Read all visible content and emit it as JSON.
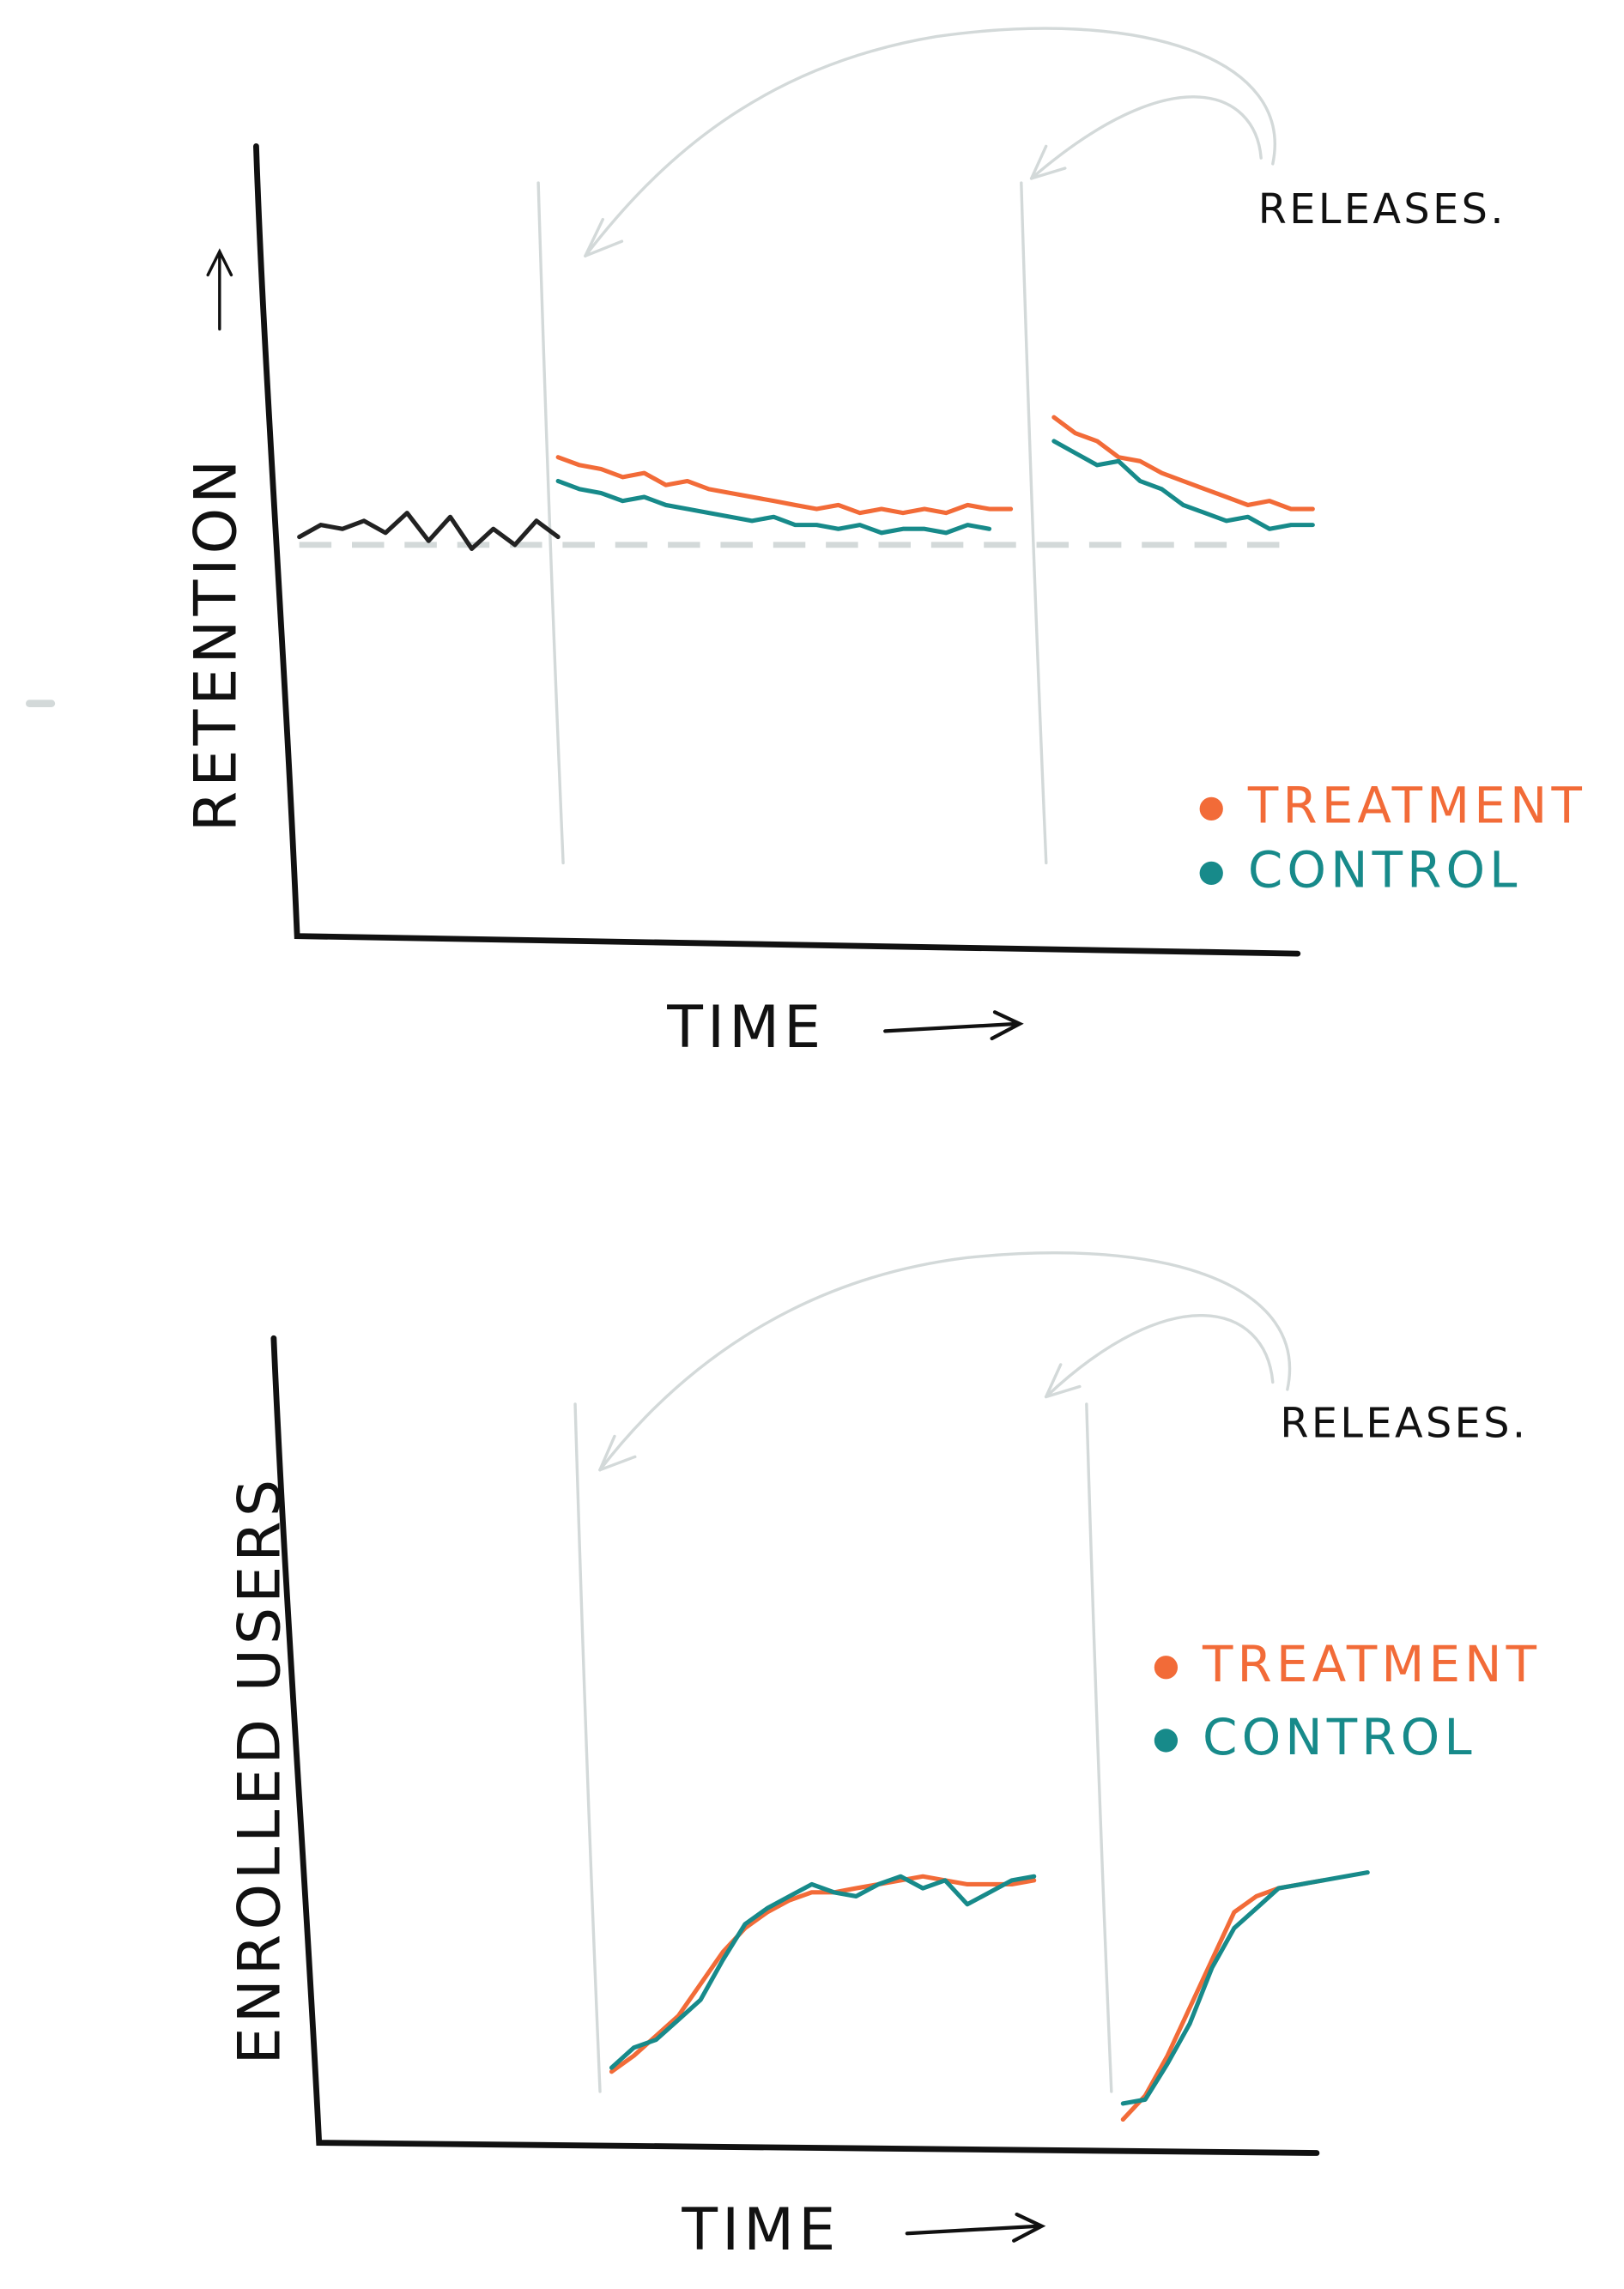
{
  "chart_data": [
    {
      "type": "line",
      "y_label": "RETENTION",
      "x_label": "TIME",
      "releases_label": "RELEASES.",
      "x": [
        0,
        2,
        4,
        6,
        8,
        10,
        12,
        14,
        16,
        18,
        20,
        22,
        24,
        26,
        28,
        30,
        32,
        34,
        36,
        38,
        40,
        42,
        44,
        46,
        48,
        50,
        52,
        54,
        56,
        58,
        60,
        62,
        64,
        66,
        68,
        70,
        72,
        74,
        76,
        78,
        80,
        82,
        84,
        86,
        88,
        90,
        92,
        94,
        96,
        98
      ],
      "xlim": [
        0,
        100
      ],
      "ylim": [
        0,
        100
      ],
      "releases": [
        27.8,
        72.6
      ],
      "baseline": 50,
      "series": [
        {
          "color": "#222222",
          "values": [
            null,
            null,
            51,
            52.5,
            52,
            53,
            51.5,
            54,
            50.5,
            53.5,
            49.5,
            52,
            50,
            53,
            51,
            null,
            null,
            null,
            null,
            null,
            null,
            null,
            null,
            null,
            null,
            null,
            null,
            null,
            null,
            null,
            null,
            null,
            null,
            null,
            null,
            null,
            null,
            null,
            null,
            null,
            null,
            null,
            null,
            null,
            null,
            null,
            null,
            null,
            null,
            null
          ]
        },
        {
          "name": "TREATMENT",
          "color": "#f26b38",
          "values": [
            null,
            null,
            null,
            null,
            null,
            null,
            null,
            null,
            null,
            null,
            null,
            null,
            null,
            null,
            61,
            60,
            59.5,
            58.5,
            59,
            57.5,
            58,
            57,
            56.5,
            56,
            55.5,
            55,
            54.5,
            55,
            54,
            54.5,
            54,
            54.5,
            54,
            55,
            54.5,
            54.5,
            null,
            66,
            64,
            63,
            61,
            60.5,
            59,
            58,
            57,
            56,
            55,
            55.5,
            54.5,
            54.5
          ]
        },
        {
          "name": "CONTROL",
          "color": "#178a8a",
          "values": [
            null,
            null,
            null,
            null,
            null,
            null,
            null,
            null,
            null,
            null,
            null,
            null,
            null,
            null,
            58,
            57,
            56.5,
            55.5,
            56,
            55,
            54.5,
            54,
            53.5,
            53,
            53.5,
            52.5,
            52.5,
            52,
            52.5,
            51.5,
            52,
            52,
            51.5,
            52.5,
            52,
            null,
            null,
            63,
            61.5,
            60,
            60.5,
            58,
            57,
            55,
            54,
            53,
            53.5,
            52,
            52.5,
            52.5
          ]
        }
      ]
    },
    {
      "type": "line",
      "y_label": "ENROLLED USERS",
      "x_label": "TIME",
      "releases_label": "RELEASES.",
      "x": [
        0,
        2,
        4,
        6,
        8,
        10,
        12,
        14,
        16,
        18,
        20,
        22,
        24,
        26,
        28,
        30,
        32,
        34,
        36,
        38,
        40,
        42,
        44,
        46,
        48,
        50,
        52,
        54,
        56,
        58,
        60,
        62,
        64,
        66,
        68,
        70,
        72,
        74,
        76,
        78,
        80,
        82,
        84,
        86,
        88,
        90,
        92,
        94,
        96,
        98
      ],
      "xlim": [
        0,
        100
      ],
      "ylim": [
        0,
        100
      ],
      "releases": [
        28.3,
        74.3
      ],
      "series": [
        {
          "name": "TREATMENT",
          "color": "#f26b38",
          "values": [
            null,
            null,
            null,
            null,
            null,
            null,
            null,
            null,
            null,
            null,
            null,
            null,
            null,
            null,
            null,
            8,
            10,
            12.5,
            15,
            19,
            23,
            26,
            28,
            29.5,
            30.5,
            30.5,
            31,
            31.5,
            32,
            32.5,
            32,
            31.5,
            31.5,
            31.5,
            32,
            null,
            null,
            null,
            2,
            5,
            10,
            16,
            22,
            28,
            30,
            31,
            31.5,
            32,
            null,
            null
          ]
        },
        {
          "name": "CONTROL",
          "color": "#178a8a",
          "values": [
            null,
            null,
            null,
            null,
            null,
            null,
            null,
            null,
            null,
            null,
            null,
            null,
            null,
            null,
            null,
            8.5,
            11,
            12,
            14.5,
            17,
            22,
            26.5,
            28.5,
            30,
            31.5,
            30.5,
            30,
            31.5,
            32.5,
            31,
            32,
            29,
            30.5,
            32,
            32.5,
            null,
            null,
            null,
            4,
            4.5,
            9,
            14,
            21,
            26,
            28.5,
            31,
            31.5,
            32,
            32.5,
            33
          ]
        }
      ]
    }
  ]
}
